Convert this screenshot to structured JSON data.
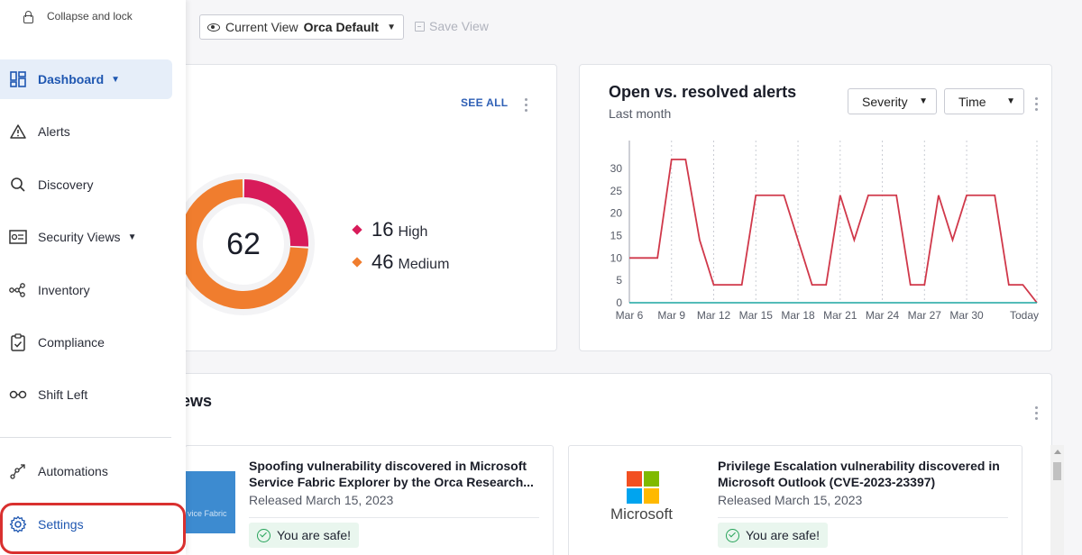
{
  "toolbar": {
    "view_label": "Current View",
    "view_value": "Orca Default",
    "save_view": "Save View"
  },
  "sidebar": {
    "collapse": "Collapse and lock",
    "items": [
      {
        "label": "Dashboard",
        "icon": "dashboard-icon",
        "active": true,
        "caret": true
      },
      {
        "label": "Alerts",
        "icon": "warning-icon"
      },
      {
        "label": "Discovery",
        "icon": "search-icon"
      },
      {
        "label": "Security Views",
        "icon": "security-views-icon",
        "caret": true
      },
      {
        "label": "Inventory",
        "icon": "inventory-icon"
      },
      {
        "label": "Compliance",
        "icon": "clipboard-check-icon"
      },
      {
        "label": "Shift Left",
        "icon": "shift-left-icon"
      },
      {
        "label": "Automations",
        "icon": "automations-icon"
      },
      {
        "label": "Settings",
        "icon": "gear-icon",
        "highlighted": true
      }
    ]
  },
  "alerts_card": {
    "see_all": "SEE ALL",
    "total": "62",
    "legend": [
      {
        "count": "16",
        "label": "High",
        "color": "#d81b5a"
      },
      {
        "count": "46",
        "label": "Medium",
        "color": "#f07d2e"
      }
    ]
  },
  "trend_card": {
    "title": "Open vs. resolved alerts",
    "subtitle": "Last month",
    "filters": [
      "Severity",
      "Time"
    ]
  },
  "news_card": {
    "title_fragment": "ews",
    "items": [
      {
        "headline_line1": "Spoofing vulnerability discovered in Microsoft",
        "headline_line2": "Service Fabric Explorer by the Orca Research...",
        "date": "Released March 15, 2023",
        "status": "You are safe!",
        "thumb_text": "vice Fabric"
      },
      {
        "headline_line1": "Privilege Escalation vulnerability discovered in",
        "headline_line2": "Microsoft Outlook (CVE-2023-23397)",
        "date": "Released March 15, 2023",
        "status": "You are safe!",
        "logo_text": "Microsoft"
      }
    ]
  },
  "chart_data": {
    "type": "line",
    "x": [
      "Mar 6",
      "Mar 7",
      "Mar 8",
      "Mar 9",
      "Mar 10",
      "Mar 11",
      "Mar 12",
      "Mar 13",
      "Mar 14",
      "Mar 15",
      "Mar 16",
      "Mar 17",
      "Mar 18",
      "Mar 19",
      "Mar 20",
      "Mar 21",
      "Mar 22",
      "Mar 23",
      "Mar 24",
      "Mar 25",
      "Mar 26",
      "Mar 27",
      "Mar 28",
      "Mar 29",
      "Mar 30",
      "Mar 31",
      "Apr 1",
      "Apr 2",
      "Apr 3",
      "Today"
    ],
    "x_tick_labels": [
      "Mar 6",
      "Mar 9",
      "Mar 12",
      "Mar 15",
      "Mar 18",
      "Mar 21",
      "Mar 24",
      "Mar 27",
      "Mar 30",
      "Today"
    ],
    "series": [
      {
        "color": "#d0384a",
        "values": [
          10,
          10,
          10,
          32,
          32,
          14,
          4,
          4,
          4,
          24,
          24,
          24,
          14,
          4,
          4,
          24,
          14,
          24,
          24,
          24,
          4,
          4,
          24,
          14,
          24,
          24,
          24,
          4,
          4,
          0
        ]
      },
      {
        "color": "#1aa5a0",
        "values": [
          0,
          0,
          0,
          0,
          0,
          0,
          0,
          0,
          0,
          0,
          0,
          0,
          0,
          0,
          0,
          0,
          0,
          0,
          0,
          0,
          0,
          0,
          0,
          0,
          0,
          0,
          0,
          0,
          0,
          0
        ]
      }
    ],
    "yticks": [
      0,
      5,
      10,
      15,
      20,
      25,
      30
    ],
    "ylim": [
      0,
      33
    ],
    "grid": "vertical dashed",
    "title": "Open vs. resolved alerts",
    "subtitle": "Last month"
  }
}
